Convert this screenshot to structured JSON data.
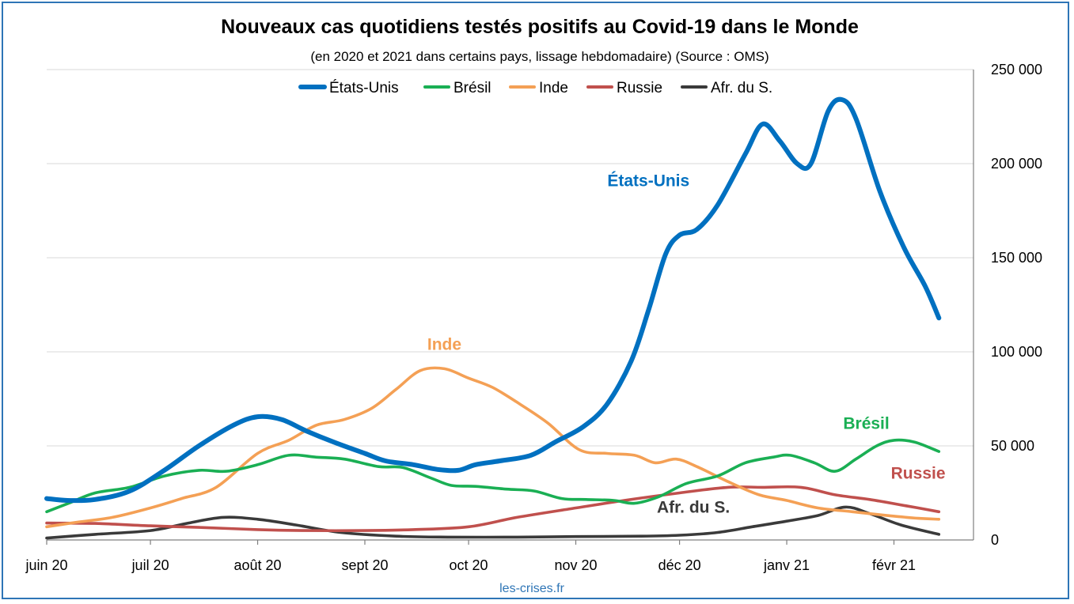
{
  "colors": {
    "etats_unis": "#0070c0",
    "bresil": "#1aaf54",
    "inde": "#f4a055",
    "russie": "#c0504d",
    "afr_du_s": "#3a3a3a",
    "frame": "#2e75b6"
  },
  "chart_data": {
    "type": "line",
    "title": "Nouveaux cas quotidiens testés positifs au Covid-19 dans le Monde",
    "subtitle": "(en 2020 et 2021 dans certains pays, lissage hebdomadaire) (Source : OMS)",
    "source": "les-crises.fr",
    "legend_position": "top",
    "grid": true,
    "y_axis_side": "right",
    "ylim": [
      0,
      250000
    ],
    "yticks": [
      "250 000",
      "200 000",
      "150 000",
      "100 000",
      "50 000",
      "0"
    ],
    "ytick_values": [
      250000,
      200000,
      150000,
      100000,
      50000,
      0
    ],
    "xlim": [
      "2020-06-01",
      "2021-02-24"
    ],
    "xticks": [
      {
        "date": "2020-06-01",
        "label": "juin 20"
      },
      {
        "date": "2020-07-01",
        "label": "juil 20"
      },
      {
        "date": "2020-08-01",
        "label": "août 20"
      },
      {
        "date": "2020-09-01",
        "label": "sept 20"
      },
      {
        "date": "2020-10-01",
        "label": "oct 20"
      },
      {
        "date": "2020-11-01",
        "label": "nov 20"
      },
      {
        "date": "2020-12-01",
        "label": "déc 20"
      },
      {
        "date": "2021-01-01",
        "label": "janv 21"
      },
      {
        "date": "2021-02-01",
        "label": "févr 21"
      }
    ],
    "series": [
      {
        "name": "États-Unis",
        "color_key": "etats_unis",
        "label": "États-Unis",
        "points": [
          [
            "2020-06-01",
            22000
          ],
          [
            "2020-06-07",
            21000
          ],
          [
            "2020-06-15",
            21500
          ],
          [
            "2020-06-25",
            26000
          ],
          [
            "2020-07-05",
            37000
          ],
          [
            "2020-07-15",
            50000
          ],
          [
            "2020-07-25",
            61000
          ],
          [
            "2020-08-01",
            65500
          ],
          [
            "2020-08-08",
            64000
          ],
          [
            "2020-08-15",
            58000
          ],
          [
            "2020-08-23",
            52000
          ],
          [
            "2020-09-01",
            46000
          ],
          [
            "2020-09-07",
            42000
          ],
          [
            "2020-09-15",
            40000
          ],
          [
            "2020-09-22",
            37500
          ],
          [
            "2020-09-28",
            37000
          ],
          [
            "2020-10-03",
            40000
          ],
          [
            "2020-10-10",
            42000
          ],
          [
            "2020-10-19",
            45000
          ],
          [
            "2020-10-26",
            52000
          ],
          [
            "2020-11-03",
            60000
          ],
          [
            "2020-11-10",
            72000
          ],
          [
            "2020-11-17",
            95000
          ],
          [
            "2020-11-22",
            122000
          ],
          [
            "2020-11-27",
            152000
          ],
          [
            "2020-12-01",
            162000
          ],
          [
            "2020-12-06",
            165000
          ],
          [
            "2020-12-12",
            178000
          ],
          [
            "2020-12-20",
            205000
          ],
          [
            "2020-12-25",
            221000
          ],
          [
            "2020-12-30",
            212000
          ],
          [
            "2021-01-04",
            200000
          ],
          [
            "2021-01-08",
            200000
          ],
          [
            "2021-01-13",
            228000
          ],
          [
            "2021-01-17",
            234000
          ],
          [
            "2021-01-21",
            224000
          ],
          [
            "2021-01-28",
            185000
          ],
          [
            "2021-02-04",
            155000
          ],
          [
            "2021-02-10",
            135000
          ],
          [
            "2021-02-14",
            118000
          ]
        ]
      },
      {
        "name": "Brésil",
        "color_key": "bresil",
        "label": "Brésil",
        "points": [
          [
            "2020-06-01",
            15000
          ],
          [
            "2020-06-08",
            20000
          ],
          [
            "2020-06-15",
            25000
          ],
          [
            "2020-06-25",
            28000
          ],
          [
            "2020-07-05",
            34000
          ],
          [
            "2020-07-15",
            37000
          ],
          [
            "2020-07-23",
            36500
          ],
          [
            "2020-08-01",
            40000
          ],
          [
            "2020-08-10",
            45000
          ],
          [
            "2020-08-18",
            44000
          ],
          [
            "2020-08-26",
            43000
          ],
          [
            "2020-09-05",
            39000
          ],
          [
            "2020-09-12",
            38500
          ],
          [
            "2020-09-20",
            33000
          ],
          [
            "2020-09-26",
            29000
          ],
          [
            "2020-10-03",
            28500
          ],
          [
            "2020-10-12",
            27000
          ],
          [
            "2020-10-20",
            26000
          ],
          [
            "2020-10-28",
            22000
          ],
          [
            "2020-11-04",
            21500
          ],
          [
            "2020-11-12",
            21000
          ],
          [
            "2020-11-18",
            19500
          ],
          [
            "2020-11-25",
            23000
          ],
          [
            "2020-12-03",
            30000
          ],
          [
            "2020-12-12",
            34000
          ],
          [
            "2020-12-20",
            41000
          ],
          [
            "2020-12-28",
            44000
          ],
          [
            "2021-01-02",
            45000
          ],
          [
            "2021-01-09",
            41000
          ],
          [
            "2021-01-15",
            36500
          ],
          [
            "2021-01-21",
            43000
          ],
          [
            "2021-01-27",
            50000
          ],
          [
            "2021-02-01",
            53000
          ],
          [
            "2021-02-07",
            52000
          ],
          [
            "2021-02-14",
            47000
          ]
        ]
      },
      {
        "name": "Inde",
        "color_key": "inde",
        "label": "Inde",
        "points": [
          [
            "2020-06-01",
            7000
          ],
          [
            "2020-06-10",
            9500
          ],
          [
            "2020-06-20",
            12000
          ],
          [
            "2020-07-01",
            17000
          ],
          [
            "2020-07-10",
            22000
          ],
          [
            "2020-07-20",
            28000
          ],
          [
            "2020-08-01",
            46000
          ],
          [
            "2020-08-10",
            53000
          ],
          [
            "2020-08-18",
            61000
          ],
          [
            "2020-08-26",
            64000
          ],
          [
            "2020-09-03",
            70000
          ],
          [
            "2020-09-10",
            80000
          ],
          [
            "2020-09-17",
            90000
          ],
          [
            "2020-09-24",
            91000
          ],
          [
            "2020-10-01",
            86000
          ],
          [
            "2020-10-08",
            81000
          ],
          [
            "2020-10-16",
            72000
          ],
          [
            "2020-10-24",
            62000
          ],
          [
            "2020-11-02",
            48000
          ],
          [
            "2020-11-10",
            46000
          ],
          [
            "2020-11-18",
            45000
          ],
          [
            "2020-11-24",
            41000
          ],
          [
            "2020-11-30",
            43000
          ],
          [
            "2020-12-06",
            39000
          ],
          [
            "2020-12-15",
            31000
          ],
          [
            "2020-12-24",
            24000
          ],
          [
            "2021-01-01",
            21000
          ],
          [
            "2021-01-10",
            17000
          ],
          [
            "2021-01-20",
            15000
          ],
          [
            "2021-01-30",
            13000
          ],
          [
            "2021-02-08",
            11500
          ],
          [
            "2021-02-14",
            11000
          ]
        ]
      },
      {
        "name": "Russie",
        "color_key": "russie",
        "label": "Russie",
        "points": [
          [
            "2020-06-01",
            9000
          ],
          [
            "2020-06-15",
            8800
          ],
          [
            "2020-07-01",
            7500
          ],
          [
            "2020-07-15",
            6700
          ],
          [
            "2020-08-01",
            5500
          ],
          [
            "2020-08-15",
            5000
          ],
          [
            "2020-09-01",
            5000
          ],
          [
            "2020-09-15",
            5500
          ],
          [
            "2020-10-01",
            7000
          ],
          [
            "2020-10-15",
            12000
          ],
          [
            "2020-11-01",
            17000
          ],
          [
            "2020-11-15",
            21000
          ],
          [
            "2020-12-01",
            25000
          ],
          [
            "2020-12-15",
            28000
          ],
          [
            "2020-12-25",
            28000
          ],
          [
            "2021-01-05",
            28000
          ],
          [
            "2021-01-15",
            24000
          ],
          [
            "2021-01-25",
            21500
          ],
          [
            "2021-02-05",
            18000
          ],
          [
            "2021-02-14",
            15000
          ]
        ]
      },
      {
        "name": "Afr. du S.",
        "color_key": "afr_du_s",
        "label": "Afr. du S.",
        "points": [
          [
            "2020-06-01",
            1000
          ],
          [
            "2020-06-15",
            3000
          ],
          [
            "2020-07-01",
            5000
          ],
          [
            "2020-07-12",
            9000
          ],
          [
            "2020-07-22",
            12000
          ],
          [
            "2020-08-01",
            11000
          ],
          [
            "2020-08-12",
            8000
          ],
          [
            "2020-08-25",
            4000
          ],
          [
            "2020-09-10",
            2000
          ],
          [
            "2020-09-25",
            1500
          ],
          [
            "2020-10-15",
            1500
          ],
          [
            "2020-11-01",
            1800
          ],
          [
            "2020-11-20",
            2000
          ],
          [
            "2020-12-01",
            2500
          ],
          [
            "2020-12-12",
            4000
          ],
          [
            "2020-12-22",
            7000
          ],
          [
            "2021-01-01",
            10000
          ],
          [
            "2021-01-10",
            13000
          ],
          [
            "2021-01-18",
            17500
          ],
          [
            "2021-01-25",
            14000
          ],
          [
            "2021-02-03",
            8000
          ],
          [
            "2021-02-14",
            3000
          ]
        ]
      }
    ],
    "annotations": [
      {
        "text": "États-Unis",
        "color_key": "etats_unis",
        "date": "2020-11-22",
        "y": 188000
      },
      {
        "text": "Inde",
        "color_key": "inde",
        "date": "2020-09-24",
        "y": 101000
      },
      {
        "text": "Brésil",
        "color_key": "bresil",
        "date": "2021-01-24",
        "y": 59000
      },
      {
        "text": "Russie",
        "color_key": "russie",
        "date": "2021-02-08",
        "y": 32500
      },
      {
        "text": "Afr. du S.",
        "color_key": "afr_du_s",
        "date": "2020-12-05",
        "y": 14500
      }
    ]
  }
}
